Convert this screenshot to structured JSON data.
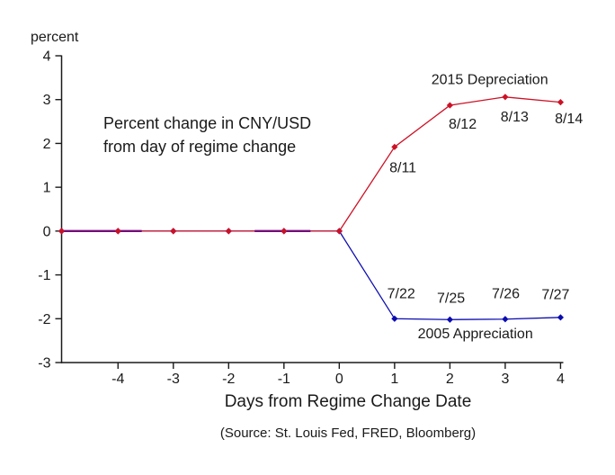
{
  "chart_data": {
    "type": "line",
    "ylabel": "percent",
    "xlabel": "Days from Regime Change Date",
    "source": "(Source: St. Louis Fed, FRED, Bloomberg)",
    "annotation": "Percent change in CNY/USD\nfrom day of regime change",
    "xlim": [
      -5.02,
      4.05
    ],
    "ylim": [
      -3,
      4
    ],
    "x_ticks": [
      -4,
      -3,
      -2,
      -1,
      0,
      1,
      2,
      3,
      4
    ],
    "y_ticks": [
      4,
      3,
      2,
      1,
      0,
      -1,
      -2,
      -3
    ],
    "grid": false,
    "axis_color": "#1a1a1a",
    "text_color": "#1a1a1a",
    "overlap_color": "#750d78",
    "flat_overlap_x_ranges": [
      [
        -5.02,
        -3.57
      ],
      [
        -1.53,
        -0.52
      ]
    ],
    "series": [
      {
        "id": "2005-appreciation",
        "name": "2005 Appreciation",
        "color": "#0b0bb0",
        "x": [
          -5.02,
          -4,
          -3,
          -2,
          -1,
          0,
          1,
          2,
          3,
          4
        ],
        "y": [
          0,
          0,
          0,
          0,
          0,
          0,
          -2.0,
          -2.02,
          -2.01,
          -1.97
        ],
        "series_label": {
          "x": 2.46,
          "y": -2.33
        },
        "point_labels": [
          {
            "text": "7/22",
            "x": 1.12,
            "y": -1.42
          },
          {
            "text": "7/25",
            "x": 2.02,
            "y": -1.52
          },
          {
            "text": "7/26",
            "x": 3.01,
            "y": -1.42
          },
          {
            "text": "7/27",
            "x": 3.91,
            "y": -1.44
          }
        ]
      },
      {
        "id": "2015-depreciation",
        "name": "2015 Depreciation",
        "color": "#cc1126",
        "x": [
          -5.02,
          -4,
          -3,
          -2,
          -1,
          0,
          1,
          2,
          3,
          4
        ],
        "y": [
          0,
          0,
          0,
          0,
          0,
          0,
          1.92,
          2.87,
          3.06,
          2.94
        ],
        "series_label": {
          "x": 2.72,
          "y": 3.47
        },
        "point_labels": [
          {
            "text": "8/11",
            "x": 1.15,
            "y": 1.45
          },
          {
            "text": "8/12",
            "x": 2.23,
            "y": 2.45
          },
          {
            "text": "8/13",
            "x": 3.17,
            "y": 2.61
          },
          {
            "text": "8/14",
            "x": 4.15,
            "y": 2.57
          }
        ]
      }
    ]
  }
}
